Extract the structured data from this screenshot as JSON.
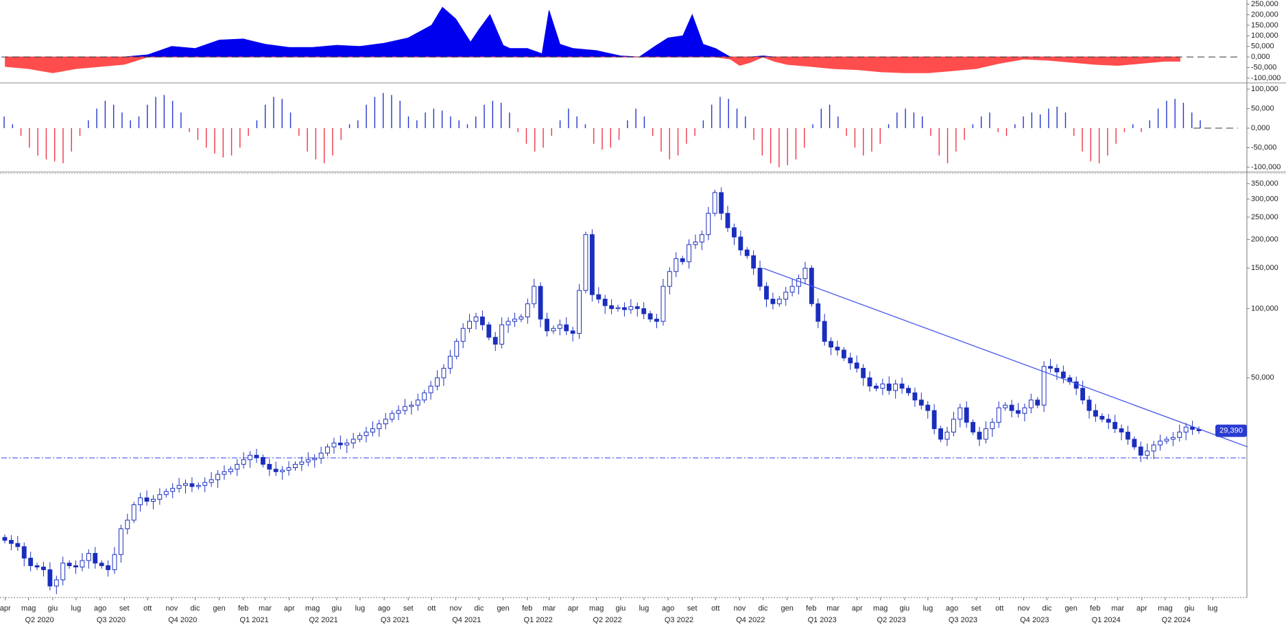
{
  "chart_data": [
    {
      "type": "area",
      "panel": "top-oscillator",
      "colors": {
        "positive": "#0000ee",
        "negative": "#ff4d4d"
      },
      "yticks": [
        "250,000",
        "200,000",
        "150,000",
        "100,000",
        "50,000",
        "0,000",
        "-50,000",
        "-100,000"
      ],
      "ylim": [
        -100000,
        250000
      ],
      "x": [
        "2020-04-01",
        "2020-05-01",
        "2020-06-01",
        "2020-07-01",
        "2020-08-01",
        "2020-09-01",
        "2020-10-01",
        "2020-11-01",
        "2020-12-01",
        "2021-01-01",
        "2021-02-01",
        "2021-03-01",
        "2021-04-01",
        "2021-05-01",
        "2021-06-01",
        "2021-07-01",
        "2021-08-01",
        "2021-09-01",
        "2021-10-01",
        "2021-10-15",
        "2021-11-01",
        "2021-11-20",
        "2021-12-01",
        "2021-12-15",
        "2022-01-01",
        "2022-01-10",
        "2022-02-01",
        "2022-02-20",
        "2022-03-01",
        "2022-03-15",
        "2022-04-01",
        "2022-05-01",
        "2022-06-01",
        "2022-06-25",
        "2022-07-15",
        "2022-08-01",
        "2022-08-20",
        "2022-09-01",
        "2022-09-15",
        "2022-10-01",
        "2022-10-20",
        "2022-11-01",
        "2022-11-15",
        "2022-12-01",
        "2022-12-15",
        "2023-01-01",
        "2023-02-01",
        "2023-03-01",
        "2023-04-01",
        "2023-05-01",
        "2023-06-01",
        "2023-07-01",
        "2023-08-01",
        "2023-09-01",
        "2023-10-01",
        "2023-11-01",
        "2023-12-01",
        "2024-01-01",
        "2024-02-01",
        "2024-03-01",
        "2024-04-01",
        "2024-05-01",
        "2024-05-20"
      ],
      "values": [
        -45000,
        -55000,
        -75000,
        -55000,
        -45000,
        -35000,
        10000,
        50000,
        40000,
        80000,
        85000,
        60000,
        45000,
        45000,
        55000,
        50000,
        65000,
        90000,
        150000,
        235000,
        180000,
        70000,
        130000,
        200000,
        55000,
        40000,
        40000,
        15000,
        220000,
        60000,
        40000,
        30000,
        5000,
        0,
        50000,
        90000,
        100000,
        200000,
        60000,
        40000,
        -10000,
        -40000,
        -25000,
        5000,
        -20000,
        -35000,
        -45000,
        -55000,
        -60000,
        -70000,
        -75000,
        -75000,
        -65000,
        -55000,
        -30000,
        -10000,
        -15000,
        -25000,
        -35000,
        -40000,
        -30000,
        -20000,
        -20000
      ]
    },
    {
      "type": "bar",
      "panel": "middle-oscillator",
      "colors": {
        "positive": "#2233cc",
        "negative": "#ee3344"
      },
      "yticks": [
        "100,000",
        "50,000",
        "0,000",
        "-50,000",
        "-100,000"
      ],
      "ylim": [
        -100000,
        100000
      ],
      "values": [
        30000,
        10000,
        -20000,
        -50000,
        -70000,
        -80000,
        -85000,
        -90000,
        -60000,
        -20000,
        20000,
        50000,
        70000,
        60000,
        40000,
        20000,
        30000,
        60000,
        80000,
        85000,
        70000,
        40000,
        -10000,
        -30000,
        -50000,
        -65000,
        -75000,
        -70000,
        -50000,
        -20000,
        20000,
        60000,
        80000,
        75000,
        40000,
        -20000,
        -60000,
        -80000,
        -90000,
        -70000,
        -30000,
        10000,
        20000,
        60000,
        80000,
        90000,
        85000,
        70000,
        30000,
        20000,
        40000,
        50000,
        45000,
        30000,
        20000,
        10000,
        30000,
        60000,
        70000,
        65000,
        40000,
        -10000,
        -40000,
        -60000,
        -50000,
        -20000,
        20000,
        50000,
        30000,
        10000,
        -40000,
        -55000,
        -50000,
        -30000,
        20000,
        50000,
        30000,
        -20000,
        -60000,
        -80000,
        -70000,
        -40000,
        -20000,
        20000,
        60000,
        80000,
        75000,
        50000,
        30000,
        -30000,
        -70000,
        -90000,
        -100000,
        -95000,
        -80000,
        -50000,
        10000,
        50000,
        60000,
        30000,
        -20000,
        -50000,
        -70000,
        -60000,
        -40000,
        10000,
        40000,
        50000,
        40000,
        30000,
        -20000,
        -70000,
        -90000,
        -60000,
        -30000,
        10000,
        30000,
        40000,
        -10000,
        -20000,
        10000,
        30000,
        40000,
        35000,
        50000,
        55000,
        40000,
        -20000,
        -60000,
        -85000,
        -90000,
        -70000,
        -40000,
        -10000,
        10000,
        -10000,
        20000,
        50000,
        70000,
        75000,
        65000,
        40000,
        20000
      ]
    },
    {
      "type": "candlestick",
      "panel": "main-price",
      "scale": "log",
      "colors": {
        "up": "#ffffff",
        "down": "#1a2ebd",
        "stroke": "#1a2ebd",
        "trendline": "#4455ee",
        "support": "#4455ee",
        "last_label_bg": "#2a3bd0"
      },
      "yticks": [
        "350,000",
        "300,000",
        "250,000",
        "200,000",
        "150,000",
        "100,000",
        "50,000"
      ],
      "ylim": [
        5600,
        380000
      ],
      "support_level": 22400,
      "trendline": {
        "from": [
          "2022-12-01",
          150000
        ],
        "to": [
          "2024-08-15",
          25000
        ]
      },
      "last_price_label": "29,390",
      "x_labels": [
        "apr",
        "mag",
        "giu",
        "lug",
        "ago",
        "set",
        "ott",
        "nov",
        "dic",
        "gen",
        "feb",
        "mar",
        "apr",
        "mag",
        "giu",
        "lug",
        "ago",
        "set",
        "ott",
        "nov",
        "dic",
        "gen",
        "feb",
        "mar",
        "apr",
        "mag",
        "giu",
        "lug",
        "ago",
        "set",
        "ott",
        "nov",
        "dic",
        "gen",
        "feb",
        "mar",
        "apr",
        "mag",
        "giu",
        "lug",
        "ago",
        "set",
        "ott",
        "nov",
        "dic",
        "gen",
        "feb",
        "mar",
        "apr",
        "mag",
        "giu",
        "lug"
      ],
      "quarter_labels": [
        "Q2 2020",
        "Q3 2020",
        "Q4 2020",
        "Q1 2021",
        "Q2 2021",
        "Q3 2021",
        "Q4 2021",
        "Q1 2022",
        "Q2 2022",
        "Q3 2022",
        "Q4 2022",
        "Q1 2023",
        "Q2 2023",
        "Q3 2023",
        "Q4 2023",
        "Q1 2024",
        "Q2 2024"
      ],
      "closes": [
        9800,
        9500,
        9200,
        8200,
        7600,
        7500,
        7300,
        6200,
        6600,
        7800,
        7600,
        7500,
        8000,
        8600,
        7800,
        7600,
        7300,
        8500,
        11000,
        12000,
        14000,
        15000,
        14500,
        14800,
        15500,
        16000,
        16500,
        17000,
        17300,
        16800,
        17000,
        17500,
        18000,
        19000,
        19500,
        20000,
        21000,
        22000,
        23000,
        22500,
        21000,
        20000,
        19500,
        19800,
        20300,
        21000,
        21500,
        22000,
        22300,
        23500,
        25000,
        26000,
        25500,
        26000,
        27000,
        28000,
        29000,
        30000,
        31500,
        33000,
        35000,
        36000,
        37500,
        38000,
        40000,
        43000,
        46000,
        50000,
        55000,
        62000,
        72000,
        82000,
        88000,
        92000,
        85000,
        75000,
        70000,
        85000,
        88000,
        90000,
        92000,
        105000,
        125000,
        90000,
        80000,
        82000,
        85000,
        80000,
        78000,
        120000,
        210000,
        115000,
        110000,
        103000,
        100000,
        101000,
        99000,
        102000,
        100000,
        95000,
        90000,
        88000,
        125000,
        145000,
        165000,
        160000,
        190000,
        195000,
        210000,
        260000,
        320000,
        260000,
        225000,
        205000,
        180000,
        170000,
        150000,
        125000,
        110000,
        105000,
        110000,
        118000,
        125000,
        135000,
        150000,
        105000,
        88000,
        72000,
        68000,
        66000,
        61000,
        58000,
        55000,
        50000,
        46000,
        45000,
        47000,
        44000,
        47000,
        45000,
        43000,
        40000,
        38000,
        36000,
        30000,
        27000,
        29000,
        33000,
        37000,
        32000,
        29000,
        27000,
        30000,
        32000,
        37000,
        38000,
        36000,
        35000,
        37000,
        40000,
        38000,
        56000,
        55000,
        53000,
        50000,
        48000,
        45000,
        40000,
        36000,
        34000,
        33000,
        32000,
        30000,
        29000,
        27000,
        25000,
        23000,
        24000,
        25500,
        26500,
        27000,
        27500,
        29000,
        30500,
        29800,
        29390
      ],
      "wick_ratio": 0.06
    }
  ]
}
